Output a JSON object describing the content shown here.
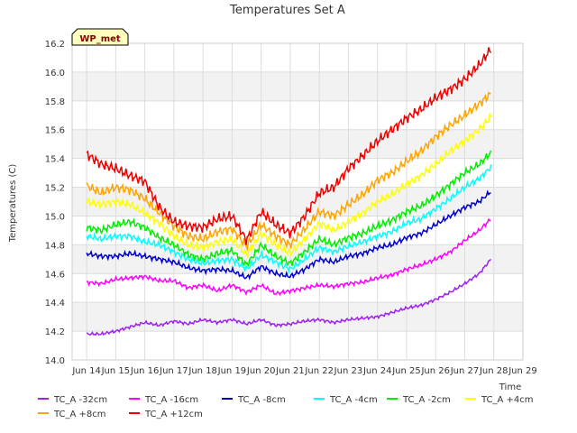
{
  "chart_data": {
    "type": "line",
    "title": "Temperatures Set A",
    "xlabel": "Time",
    "ylabel": "Temperatures (C)",
    "badge": "WP_met",
    "x_ticks": [
      "Jun 14",
      "Jun 15",
      "Jun 16",
      "Jun 17",
      "Jun 18",
      "Jun 19",
      "Jun 20",
      "Jun 21",
      "Jun 22",
      "Jun 23",
      "Jun 24",
      "Jun 25",
      "Jun 26",
      "Jun 27",
      "Jun 28",
      "Jun 29"
    ],
    "xlim": [
      13.5,
      29.0
    ],
    "y_ticks": [
      "14.0",
      "14.2",
      "14.4",
      "14.6",
      "14.8",
      "15.0",
      "15.2",
      "15.4",
      "15.6",
      "15.8",
      "16.0",
      "16.2"
    ],
    "ylim": [
      14.0,
      16.2
    ],
    "grid": true,
    "band_fill": "#f2f2f2",
    "legend_position": "bottom",
    "x": [
      14.0,
      14.5,
      15.0,
      15.5,
      16.0,
      16.5,
      17.0,
      17.5,
      18.0,
      18.5,
      19.0,
      19.5,
      20.0,
      20.5,
      21.0,
      21.5,
      22.0,
      22.5,
      23.0,
      23.5,
      24.0,
      24.5,
      25.0,
      25.5,
      26.0,
      26.5,
      27.0,
      27.5,
      27.9
    ],
    "series": [
      {
        "name": "TC_A -32cm",
        "color": "#a020f0",
        "values": [
          14.18,
          14.18,
          14.2,
          14.23,
          14.26,
          14.24,
          14.27,
          14.25,
          14.28,
          14.26,
          14.28,
          14.25,
          14.28,
          14.24,
          14.25,
          14.27,
          14.28,
          14.26,
          14.28,
          14.29,
          14.3,
          14.33,
          14.36,
          14.38,
          14.42,
          14.47,
          14.53,
          14.6,
          14.7
        ]
      },
      {
        "name": "TC_A -16cm",
        "color": "#ff00ff",
        "values": [
          14.54,
          14.53,
          14.56,
          14.57,
          14.58,
          14.55,
          14.55,
          14.5,
          14.52,
          14.48,
          14.52,
          14.47,
          14.52,
          14.46,
          14.48,
          14.5,
          14.52,
          14.51,
          14.53,
          14.54,
          14.57,
          14.59,
          14.63,
          14.66,
          14.7,
          14.75,
          14.83,
          14.9,
          14.98
        ]
      },
      {
        "name": "TC_A -8cm",
        "color": "#0000cd",
        "values": [
          14.74,
          14.72,
          14.72,
          14.74,
          14.72,
          14.7,
          14.68,
          14.64,
          14.62,
          14.63,
          14.62,
          14.57,
          14.65,
          14.6,
          14.58,
          14.63,
          14.7,
          14.68,
          14.72,
          14.74,
          14.78,
          14.8,
          14.85,
          14.88,
          14.94,
          15.0,
          15.06,
          15.1,
          15.17
        ]
      },
      {
        "name": "TC_A -4cm",
        "color": "#00ffff",
        "values": [
          14.86,
          14.84,
          14.86,
          14.86,
          14.82,
          14.8,
          14.75,
          14.7,
          14.67,
          14.69,
          14.7,
          14.63,
          14.73,
          14.68,
          14.63,
          14.7,
          14.78,
          14.75,
          14.79,
          14.82,
          14.86,
          14.89,
          14.95,
          14.98,
          15.05,
          15.12,
          15.2,
          15.26,
          15.34
        ]
      },
      {
        "name": "TC_A -2cm",
        "color": "#00ee00",
        "values": [
          14.92,
          14.9,
          14.94,
          14.96,
          14.92,
          14.85,
          14.8,
          14.73,
          14.7,
          14.74,
          14.76,
          14.66,
          14.8,
          14.72,
          14.67,
          14.75,
          14.84,
          14.8,
          14.85,
          14.88,
          14.93,
          14.97,
          15.03,
          15.07,
          15.14,
          15.22,
          15.3,
          15.36,
          15.44
        ]
      },
      {
        "name": "TC_A +4cm",
        "color": "#ffff00",
        "values": [
          15.1,
          15.08,
          15.1,
          15.08,
          15.02,
          14.95,
          14.86,
          14.8,
          14.78,
          14.82,
          14.84,
          14.73,
          14.88,
          14.8,
          14.74,
          14.84,
          14.95,
          14.9,
          14.96,
          15.02,
          15.1,
          15.15,
          15.22,
          15.28,
          15.36,
          15.45,
          15.52,
          15.6,
          15.69
        ]
      },
      {
        "name": "TC_A +8cm",
        "color": "#ffa500",
        "values": [
          15.21,
          15.16,
          15.2,
          15.18,
          15.12,
          15.02,
          14.93,
          14.86,
          14.84,
          14.89,
          14.91,
          14.79,
          14.94,
          14.86,
          14.8,
          14.91,
          15.03,
          15.0,
          15.08,
          15.15,
          15.25,
          15.3,
          15.38,
          15.45,
          15.55,
          15.63,
          15.7,
          15.78,
          15.85
        ]
      },
      {
        "name": "TC_A +12cm",
        "color": "#ee0000",
        "values": [
          15.43,
          15.36,
          15.33,
          15.28,
          15.24,
          15.06,
          14.96,
          14.93,
          14.92,
          14.98,
          15.0,
          14.83,
          15.03,
          14.94,
          14.88,
          15.0,
          15.16,
          15.2,
          15.33,
          15.42,
          15.52,
          15.6,
          15.68,
          15.74,
          15.82,
          15.88,
          15.95,
          16.05,
          16.16
        ]
      }
    ]
  }
}
